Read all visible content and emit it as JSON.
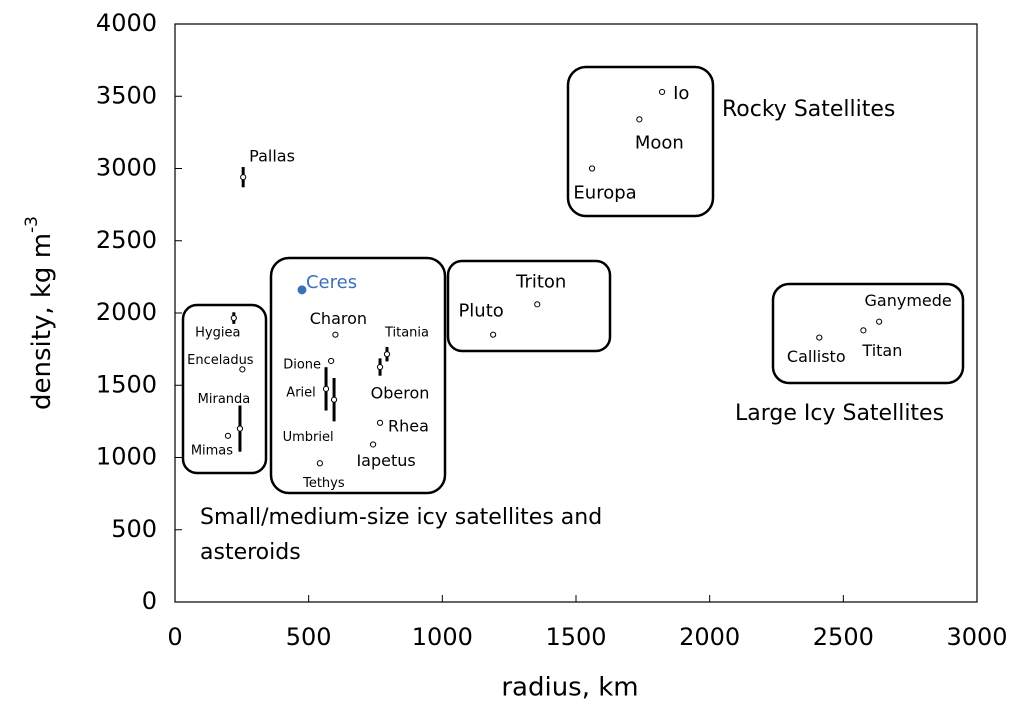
{
  "chart_data": {
    "type": "scatter",
    "xlabel": "radius, km",
    "ylabel": "density, kg m",
    "ylabel_sup": "-3",
    "xlim": [
      0,
      3000
    ],
    "ylim": [
      0,
      4000
    ],
    "xticks": [
      0,
      500,
      1000,
      1500,
      2000,
      2500,
      3000
    ],
    "yticks": [
      0,
      500,
      1000,
      1500,
      2000,
      2500,
      3000,
      3500,
      4000
    ],
    "grid": false,
    "series": [
      {
        "labels": [
          "Pallas",
          "Hygiea",
          "Enceladus",
          "Miranda",
          "Mimas",
          "Ceres",
          "Charon",
          "Titania",
          "Oberon",
          "Dione",
          "Ariel",
          "Umbriel",
          "Rhea",
          "Iapetus",
          "Tethys",
          "Triton",
          "Pluto",
          "Europa",
          "Moon",
          "Io",
          "Callisto",
          "Titan",
          "Ganymede"
        ],
        "x": [
          255,
          220,
          252,
          243,
          198,
          475,
          600,
          793,
          767,
          584,
          565,
          595,
          767,
          741,
          542,
          1355,
          1190,
          1560,
          1737,
          1822,
          2410,
          2575,
          2634
        ],
        "values": [
          2940,
          1965,
          1610,
          1200,
          1150,
          2160,
          1850,
          1715,
          1626,
          1668,
          1475,
          1400,
          1240,
          1090,
          960,
          2060,
          1850,
          3000,
          3340,
          3530,
          1830,
          1880,
          1940
        ],
        "errors": [
          70,
          40,
          null,
          160,
          null,
          null,
          null,
          50,
          60,
          null,
          150,
          150,
          null,
          null,
          null,
          null,
          null,
          null,
          null,
          null,
          null,
          null,
          null
        ],
        "colors": [
          "#000000",
          "#000000",
          "#000000",
          "#000000",
          "#000000",
          "#3a72b8",
          "#000000",
          "#000000",
          "#000000",
          "#000000",
          "#000000",
          "#000000",
          "#000000",
          "#000000",
          "#000000",
          "#000000",
          "#000000",
          "#000000",
          "#000000",
          "#000000",
          "#000000",
          "#000000",
          "#000000"
        ]
      }
    ],
    "annotations": [
      {
        "text": [
          "Rocky Satellites"
        ]
      },
      {
        "text": [
          "Large Icy Satellites"
        ]
      },
      {
        "text": [
          "Small/medium-size icy satellites and",
          "asteroids"
        ]
      }
    ]
  }
}
